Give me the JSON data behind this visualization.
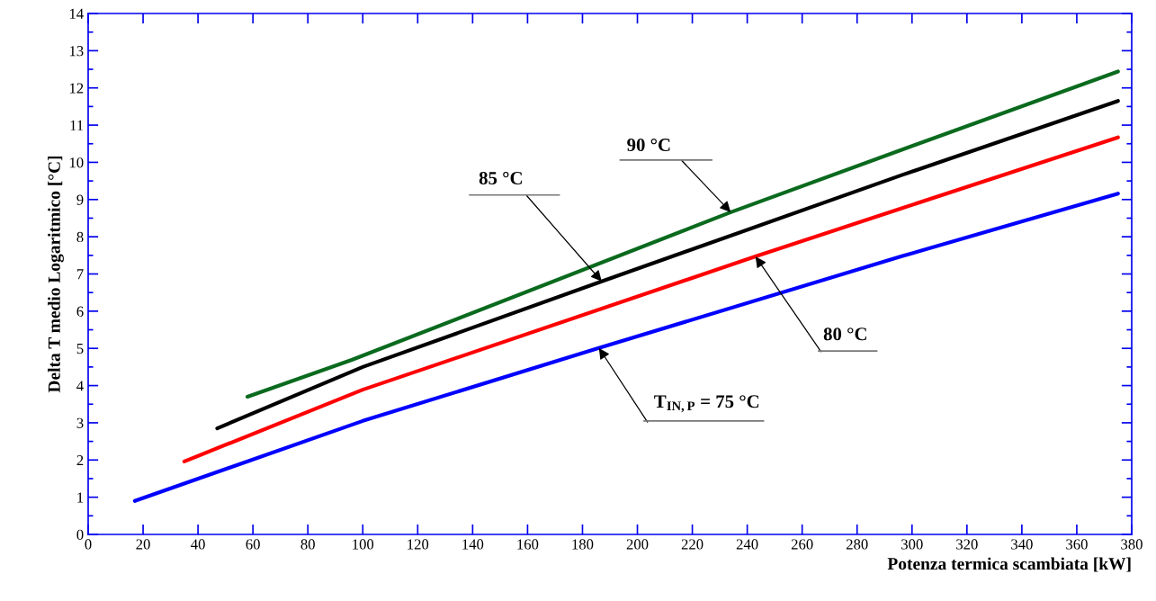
{
  "chart_data": {
    "type": "line",
    "xlabel": "Potenza termica scambiata [kW]",
    "ylabel": "Delta T medio Logaritmico [°C]",
    "xlim": [
      0,
      380
    ],
    "xticks": [
      0,
      20,
      40,
      60,
      80,
      100,
      120,
      140,
      160,
      180,
      200,
      220,
      240,
      260,
      280,
      300,
      320,
      340,
      360,
      380
    ],
    "ylim": [
      0,
      14
    ],
    "yticks": [
      0,
      1,
      2,
      3,
      4,
      5,
      6,
      7,
      8,
      9,
      10,
      11,
      12,
      13,
      14
    ],
    "grid": false,
    "marker": "none",
    "line_style": "solid",
    "series": [
      {
        "color": "#0000ff",
        "x": [
          17,
          100,
          186,
          296,
          375
        ],
        "values": [
          0.9,
          3.05,
          5.01,
          7.47,
          9.16
        ]
      },
      {
        "color": "#ff0000",
        "x": [
          35,
          100,
          243,
          296,
          375
        ],
        "values": [
          1.96,
          3.89,
          7.47,
          8.76,
          10.67
        ]
      },
      {
        "color": "#000000",
        "x": [
          47,
          100,
          187,
          296,
          375
        ],
        "values": [
          2.85,
          4.5,
          6.8,
          9.65,
          11.65
        ]
      },
      {
        "color": "#0a6a1e",
        "x": [
          58,
          96,
          234,
          296,
          375
        ],
        "values": [
          3.7,
          4.69,
          8.66,
          10.33,
          12.44
        ]
      }
    ],
    "annotations": [
      {
        "text": "90 °C",
        "x": 234,
        "y": 8.66
      },
      {
        "text": "85 °C",
        "x": 187,
        "y": 6.8
      },
      {
        "text": "80 °C",
        "x": 243,
        "y": 7.47
      },
      {
        "text": "T$_{IN,P}$ = 75 °C",
        "x": 186,
        "y": 5.01
      }
    ]
  }
}
